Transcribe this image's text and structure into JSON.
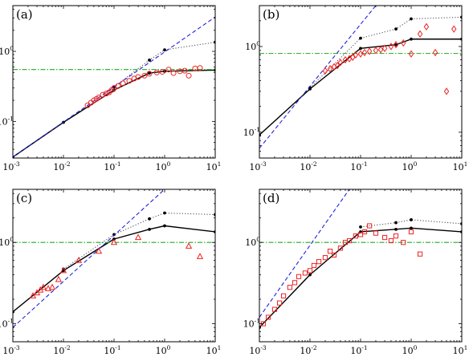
{
  "chart_data": [
    {
      "type": "line",
      "panel_label": "(a)",
      "xscale": "log",
      "yscale": "log",
      "xlim": [
        0.001,
        10
      ],
      "ylim": [
        0.03,
        4.5
      ],
      "x_ticks": [
        {
          "v": 0.001,
          "base": "10",
          "exp": "-3"
        },
        {
          "v": 0.01,
          "base": "10",
          "exp": "-2"
        },
        {
          "v": 0.1,
          "base": "10",
          "exp": "-1"
        },
        {
          "v": 1,
          "base": "10",
          "exp": "0"
        },
        {
          "v": 10,
          "base": "10",
          "exp": "1"
        }
      ],
      "y_ticks": [
        {
          "v": 0.1,
          "base": "10",
          "exp": "-1"
        },
        {
          "v": 1,
          "base": "10",
          "exp": "0"
        }
      ],
      "series": [
        {
          "style": "solid",
          "color": "#000000",
          "markers": true,
          "x": [
            0.001,
            0.01,
            0.1,
            0.5,
            1,
            10
          ],
          "y": [
            0.031,
            0.097,
            0.28,
            0.49,
            0.52,
            0.54
          ]
        },
        {
          "style": "dotted",
          "color": "#555555",
          "markers": true,
          "x": [
            0.1,
            0.5,
            1,
            10
          ],
          "y": [
            0.31,
            0.75,
            1.05,
            1.35
          ]
        },
        {
          "style": "dashed",
          "color": "#2222dd",
          "markers": false,
          "x": [
            0.001,
            10
          ],
          "y": [
            0.031,
            3.1
          ]
        },
        {
          "style": "dashdot",
          "color": "#22aa22",
          "markers": false,
          "x": [
            0.001,
            10
          ],
          "y": [
            0.55,
            0.55
          ]
        },
        {
          "style": "scatter",
          "marker": "circle",
          "color": "#ee2222",
          "x": [
            0.03,
            0.035,
            0.04,
            0.045,
            0.05,
            0.06,
            0.07,
            0.08,
            0.09,
            0.1,
            0.12,
            0.15,
            0.2,
            0.25,
            0.3,
            0.4,
            0.5,
            0.7,
            0.9,
            1.2,
            1.5,
            2,
            2.5,
            3,
            4,
            5
          ],
          "y": [
            0.17,
            0.185,
            0.2,
            0.21,
            0.22,
            0.24,
            0.25,
            0.26,
            0.28,
            0.3,
            0.32,
            0.35,
            0.38,
            0.41,
            0.43,
            0.45,
            0.48,
            0.5,
            0.51,
            0.55,
            0.49,
            0.52,
            0.53,
            0.45,
            0.57,
            0.58
          ]
        }
      ]
    },
    {
      "type": "line",
      "panel_label": "(b)",
      "xscale": "log",
      "yscale": "log",
      "xlim": [
        0.001,
        10
      ],
      "ylim": [
        0.05,
        3
      ],
      "x_ticks": [
        {
          "v": 0.001,
          "base": "10",
          "exp": "-3"
        },
        {
          "v": 0.01,
          "base": "10",
          "exp": "-2"
        },
        {
          "v": 0.1,
          "base": "10",
          "exp": "-1"
        },
        {
          "v": 1,
          "base": "10",
          "exp": "0"
        },
        {
          "v": 10,
          "base": "10",
          "exp": "1"
        }
      ],
      "y_ticks": [
        {
          "v": 0.1,
          "base": "10",
          "exp": "-1"
        },
        {
          "v": 1,
          "base": "10",
          "exp": "0"
        }
      ],
      "series": [
        {
          "style": "solid",
          "color": "#000000",
          "markers": true,
          "x": [
            0.001,
            0.01,
            0.1,
            0.5,
            1,
            10
          ],
          "y": [
            0.093,
            0.32,
            0.95,
            1.05,
            1.22,
            1.22
          ]
        },
        {
          "style": "dotted",
          "color": "#555555",
          "markers": true,
          "x": [
            0.01,
            0.1,
            0.5,
            1,
            10
          ],
          "y": [
            0.33,
            1.25,
            1.6,
            2.1,
            2.2
          ]
        },
        {
          "style": "dashed",
          "color": "#2222dd",
          "markers": false,
          "x": [
            0.001,
            0.2
          ],
          "y": [
            0.065,
            3.0
          ]
        },
        {
          "style": "dashdot",
          "color": "#22aa22",
          "markers": false,
          "x": [
            0.001,
            10
          ],
          "y": [
            0.83,
            0.83
          ]
        },
        {
          "style": "scatter",
          "marker": "diamond",
          "color": "#ee2222",
          "x": [
            0.02,
            0.025,
            0.03,
            0.035,
            0.04,
            0.05,
            0.06,
            0.07,
            0.08,
            0.1,
            0.12,
            0.15,
            0.2,
            0.25,
            0.3,
            0.4,
            0.5,
            0.7,
            1,
            1.5,
            2,
            3,
            5,
            7
          ],
          "y": [
            0.52,
            0.55,
            0.58,
            0.6,
            0.65,
            0.7,
            0.72,
            0.75,
            0.8,
            0.82,
            0.85,
            0.88,
            0.9,
            0.92,
            0.95,
            1.0,
            1.05,
            1.1,
            0.82,
            1.4,
            1.7,
            0.85,
            0.3,
            1.6
          ]
        }
      ]
    },
    {
      "type": "line",
      "panel_label": "(c)",
      "xscale": "log",
      "yscale": "log",
      "xlim": [
        0.001,
        10
      ],
      "ylim": [
        0.06,
        4.5
      ],
      "x_ticks": [
        {
          "v": 0.001,
          "base": "10",
          "exp": "-3"
        },
        {
          "v": 0.01,
          "base": "10",
          "exp": "-2"
        },
        {
          "v": 0.1,
          "base": "10",
          "exp": "-1"
        },
        {
          "v": 1,
          "base": "10",
          "exp": "0"
        },
        {
          "v": 10,
          "base": "10",
          "exp": "1"
        }
      ],
      "y_ticks": [
        {
          "v": 0.1,
          "base": "10",
          "exp": "-1"
        },
        {
          "v": 1,
          "base": "10",
          "exp": "0"
        }
      ],
      "series": [
        {
          "style": "solid",
          "color": "#000000",
          "markers": true,
          "x": [
            0.001,
            0.01,
            0.1,
            0.5,
            1,
            10
          ],
          "y": [
            0.14,
            0.45,
            1.1,
            1.45,
            1.6,
            1.35
          ]
        },
        {
          "style": "dotted",
          "color": "#555555",
          "markers": true,
          "x": [
            0.01,
            0.1,
            0.5,
            1,
            10
          ],
          "y": [
            0.47,
            1.25,
            1.95,
            2.3,
            2.2
          ]
        },
        {
          "style": "dashed",
          "color": "#2222dd",
          "markers": false,
          "x": [
            0.001,
            1.0
          ],
          "y": [
            0.09,
            4.5
          ]
        },
        {
          "style": "dashdot",
          "color": "#22aa22",
          "markers": false,
          "x": [
            0.001,
            10
          ],
          "y": [
            1.0,
            1.0
          ]
        },
        {
          "style": "scatter",
          "marker": "triangle",
          "color": "#ee2222",
          "x": [
            0.0025,
            0.003,
            0.0035,
            0.004,
            0.005,
            0.006,
            0.008,
            0.01,
            0.02,
            0.05,
            0.1,
            0.3,
            3,
            5
          ],
          "y": [
            0.22,
            0.24,
            0.26,
            0.28,
            0.27,
            0.28,
            0.35,
            0.45,
            0.6,
            0.78,
            1.0,
            1.15,
            0.9,
            0.67
          ]
        }
      ]
    },
    {
      "type": "line",
      "panel_label": "(d)",
      "xscale": "log",
      "yscale": "log",
      "xlim": [
        0.001,
        10
      ],
      "ylim": [
        0.06,
        4.5
      ],
      "x_ticks": [
        {
          "v": 0.001,
          "base": "10",
          "exp": "-3"
        },
        {
          "v": 0.01,
          "base": "10",
          "exp": "-2"
        },
        {
          "v": 0.1,
          "base": "10",
          "exp": "-1"
        },
        {
          "v": 1,
          "base": "10",
          "exp": "0"
        },
        {
          "v": 10,
          "base": "10",
          "exp": "1"
        }
      ],
      "y_ticks": [
        {
          "v": 0.1,
          "base": "10",
          "exp": "-1"
        },
        {
          "v": 1,
          "base": "10",
          "exp": "0"
        }
      ],
      "series": [
        {
          "style": "solid",
          "color": "#000000",
          "markers": true,
          "x": [
            0.001,
            0.01,
            0.1,
            0.5,
            1,
            10
          ],
          "y": [
            0.09,
            0.4,
            1.35,
            1.45,
            1.5,
            1.35
          ]
        },
        {
          "style": "dotted",
          "color": "#555555",
          "markers": true,
          "x": [
            0.1,
            0.5,
            1,
            10
          ],
          "y": [
            1.55,
            1.75,
            1.9,
            1.7
          ]
        },
        {
          "style": "dashed",
          "color": "#2222dd",
          "markers": false,
          "x": [
            0.001,
            0.06
          ],
          "y": [
            0.12,
            4.5
          ]
        },
        {
          "style": "dashdot",
          "color": "#22aa22",
          "markers": false,
          "x": [
            0.001,
            10
          ],
          "y": [
            1.0,
            1.0
          ]
        },
        {
          "style": "scatter",
          "marker": "square",
          "color": "#ee2222",
          "x": [
            0.0012,
            0.0015,
            0.002,
            0.0025,
            0.003,
            0.004,
            0.005,
            0.006,
            0.008,
            0.01,
            0.012,
            0.015,
            0.02,
            0.025,
            0.03,
            0.04,
            0.05,
            0.06,
            0.08,
            0.1,
            0.12,
            0.15,
            0.2,
            0.3,
            0.4,
            0.5,
            0.7,
            1,
            1.5
          ],
          "y": [
            0.1,
            0.12,
            0.15,
            0.18,
            0.22,
            0.28,
            0.32,
            0.38,
            0.42,
            0.45,
            0.52,
            0.58,
            0.65,
            0.78,
            0.7,
            0.85,
            1.0,
            1.05,
            1.2,
            1.25,
            1.35,
            1.6,
            1.3,
            1.15,
            1.05,
            1.2,
            1.0,
            1.35,
            0.72
          ]
        }
      ]
    }
  ]
}
